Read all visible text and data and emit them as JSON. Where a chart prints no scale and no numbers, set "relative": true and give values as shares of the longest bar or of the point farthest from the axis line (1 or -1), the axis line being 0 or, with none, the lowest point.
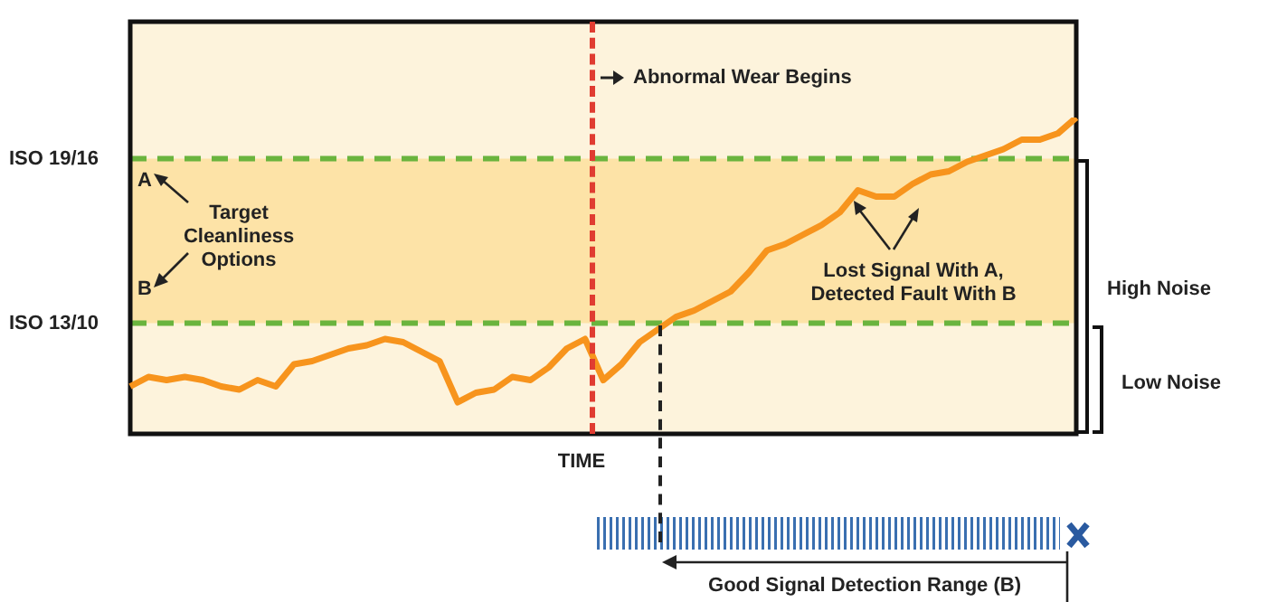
{
  "chart_data": {
    "type": "line",
    "relative": true,
    "xlabel": "TIME",
    "categories": [
      null,
      null,
      null,
      null,
      null,
      null,
      null,
      null,
      null,
      null,
      null,
      null,
      null,
      null,
      null,
      null,
      null,
      null,
      null,
      null,
      null,
      null,
      null,
      null,
      null,
      null,
      null,
      null,
      null,
      null,
      null,
      null,
      null,
      null,
      null,
      null,
      null,
      null,
      null,
      null,
      null,
      null,
      null,
      null,
      null,
      null,
      null,
      null,
      null,
      null,
      null,
      null,
      null
    ],
    "series": [
      {
        "color": "#f7941d",
        "values": [
          0.15,
          0.18,
          0.17,
          0.18,
          0.17,
          0.15,
          0.14,
          0.17,
          0.15,
          0.22,
          0.23,
          0.25,
          0.27,
          0.28,
          0.3,
          0.29,
          0.26,
          0.23,
          0.1,
          0.13,
          0.14,
          0.18,
          0.17,
          0.21,
          0.27,
          0.3,
          0.17,
          0.22,
          0.29,
          0.33,
          0.37,
          0.39,
          0.42,
          0.45,
          0.51,
          0.58,
          0.6,
          0.63,
          0.66,
          0.7,
          0.77,
          0.75,
          0.75,
          0.79,
          0.82,
          0.83,
          0.86,
          0.88,
          0.9,
          0.93,
          0.93,
          0.95,
          1
        ]
      }
    ],
    "ref_lines": [
      {
        "axis": "y",
        "value": 0.87,
        "label": "ISO 19/16",
        "color": "#6ab43e",
        "line_style": "dashed"
      },
      {
        "axis": "y",
        "value": 0.35,
        "label": "ISO 13/10",
        "color": "#6ab43e",
        "line_style": "dashed"
      }
    ],
    "bands": [
      {
        "axis": "y",
        "from": 0.35,
        "to": 0.87,
        "color": "#fde3a7"
      }
    ],
    "annotations": [
      "Abnormal Wear Begins",
      "A",
      "B",
      "Target Cleanliness Options",
      "Lost Signal With A, Detected Fault With B",
      "High Noise",
      "Low Noise",
      "Good Signal Detection Range (B)"
    ],
    "legend": false,
    "marker": "none",
    "line_style": "solid"
  }
}
